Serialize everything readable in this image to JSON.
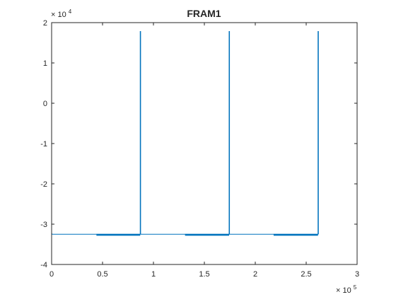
{
  "chart_data": {
    "type": "line",
    "title": "FRAM1",
    "xlabel": "",
    "ylabel": "",
    "xlim": [
      0,
      300000
    ],
    "ylim": [
      -40000,
      20000
    ],
    "x_ticks": [
      0,
      50000,
      100000,
      150000,
      200000,
      250000,
      300000
    ],
    "x_tick_labels": [
      "0",
      "0.5",
      "1",
      "1.5",
      "2",
      "2.5",
      "3"
    ],
    "y_ticks": [
      -40000,
      -30000,
      -20000,
      -10000,
      0,
      10000,
      20000
    ],
    "y_tick_labels": [
      "-4",
      "-3",
      "-2",
      "-1",
      "0",
      "1",
      "2"
    ],
    "x_exponent": {
      "base": "× 10",
      "power": "5"
    },
    "y_exponent": {
      "base": "× 10",
      "power": "4"
    },
    "grid": false,
    "line_color": "#0072BD",
    "series": [
      {
        "x": [
          0,
          0,
          0,
          800,
          87000,
          87000,
          87400,
          87400,
          174300,
          174300,
          174700,
          174700,
          261600,
          261600,
          262000,
          262000
        ],
        "y": [
          0,
          -32500,
          -32400,
          -32500,
          -32500,
          17800,
          17800,
          -32500,
          -32500,
          17800,
          17800,
          -32500,
          -32500,
          17800,
          17800,
          -32500
        ]
      }
    ],
    "noise_bands": [
      {
        "x0": 44000,
        "x1": 87000,
        "y": -32600
      },
      {
        "x0": 131000,
        "x1": 174300,
        "y": -32600
      },
      {
        "x0": 218000,
        "x1": 261600,
        "y": -32600
      }
    ]
  }
}
